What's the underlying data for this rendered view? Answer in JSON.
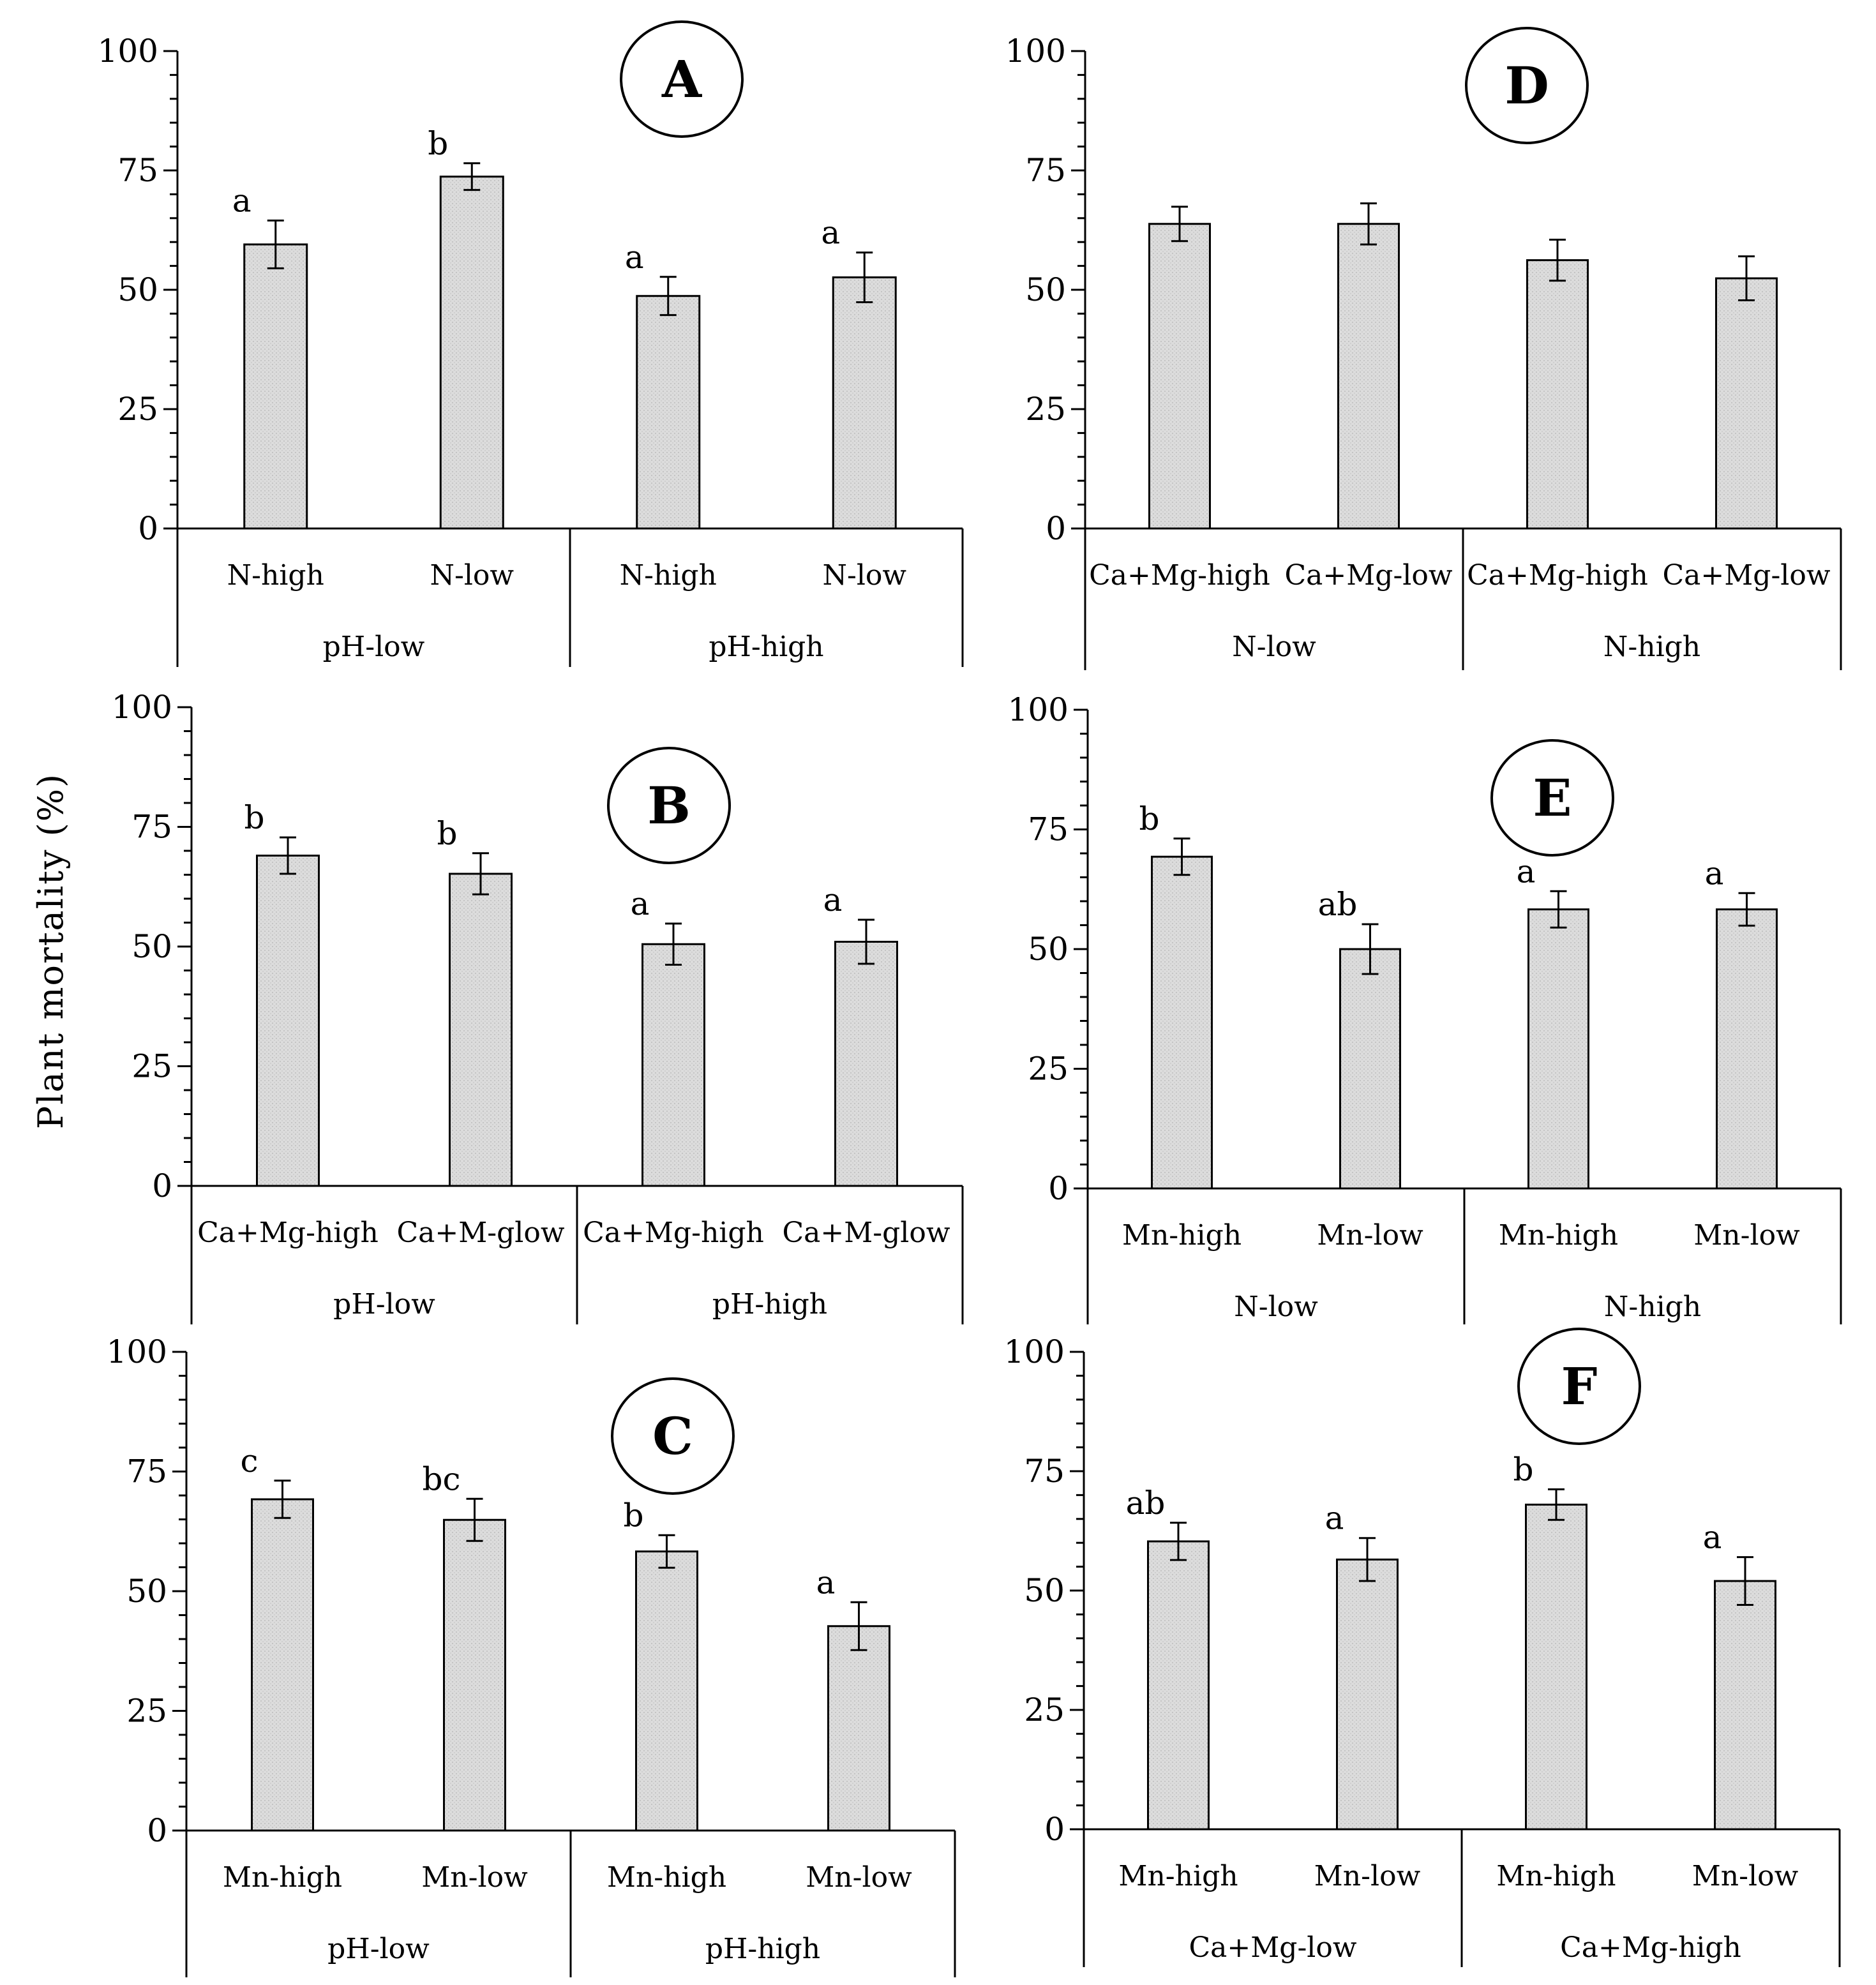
{
  "ylabel": "Plant mortality  (%)",
  "chart_data": [
    {
      "type": "bar",
      "panel": "A",
      "categories": [
        "N-high",
        "N-low",
        "N-high",
        "N-low"
      ],
      "groups": [
        "pH-low",
        "pH-high"
      ],
      "values": [
        59.5,
        73.7,
        48.7,
        52.6
      ],
      "errors": [
        5.0,
        2.8,
        4.0,
        5.2
      ],
      "letters": [
        "a",
        "b",
        "a",
        "a"
      ],
      "yticks": [
        "0",
        "25",
        "50",
        "75",
        "100"
      ],
      "ylim": [
        0,
        100
      ]
    },
    {
      "type": "bar",
      "panel": "B",
      "categories": [
        "Ca+Mg-high",
        "Ca+M-glow",
        "Ca+Mg-high",
        "Ca+M-glow"
      ],
      "groups": [
        "pH-low",
        "pH-high"
      ],
      "values": [
        69.0,
        65.2,
        50.5,
        51.0
      ],
      "errors": [
        3.8,
        4.3,
        4.3,
        4.6
      ],
      "letters": [
        "b",
        "b",
        "a",
        "a"
      ],
      "yticks": [
        "0",
        "25",
        "50",
        "75",
        "100"
      ],
      "ylim": [
        0,
        100
      ]
    },
    {
      "type": "bar",
      "panel": "C",
      "categories": [
        "Mn-high",
        "Mn-low",
        "Mn-high",
        "Mn-low"
      ],
      "groups": [
        "pH-low",
        "pH-high"
      ],
      "values": [
        69.2,
        64.9,
        58.3,
        42.7
      ],
      "errors": [
        3.9,
        4.4,
        3.4,
        5.0
      ],
      "letters": [
        "c",
        "bc",
        "b",
        "a"
      ],
      "yticks": [
        "0",
        "25",
        "50",
        "75",
        "100"
      ],
      "ylim": [
        0,
        100
      ]
    },
    {
      "type": "bar",
      "panel": "D",
      "categories": [
        "Ca+Mg-high",
        "Ca+Mg-low",
        "Ca+Mg-high",
        "Ca+Mg-low"
      ],
      "groups": [
        "N-low",
        "N-high"
      ],
      "values": [
        63.8,
        63.8,
        56.2,
        52.4
      ],
      "errors": [
        3.6,
        4.3,
        4.3,
        4.6
      ],
      "letters": [
        "",
        "",
        "",
        ""
      ],
      "yticks": [
        "0",
        "25",
        "50",
        "75",
        "100"
      ],
      "ylim": [
        0,
        100
      ]
    },
    {
      "type": "bar",
      "panel": "E",
      "categories": [
        "Mn-high",
        "Mn-low",
        "Mn-high",
        "Mn-low"
      ],
      "groups": [
        "N-low",
        "N-high"
      ],
      "values": [
        69.3,
        50.0,
        58.3,
        58.3
      ],
      "errors": [
        3.8,
        5.2,
        3.8,
        3.4
      ],
      "letters": [
        "b",
        "ab",
        "a",
        "a"
      ],
      "yticks": [
        "0",
        "25",
        "50",
        "75",
        "100"
      ],
      "ylim": [
        0,
        100
      ]
    },
    {
      "type": "bar",
      "panel": "F",
      "categories": [
        "Mn-high",
        "Mn-low",
        "Mn-high",
        "Mn-low"
      ],
      "groups": [
        "Ca+Mg-low",
        "Ca+Mg-high"
      ],
      "values": [
        60.3,
        56.5,
        68.0,
        52.0
      ],
      "errors": [
        3.9,
        4.5,
        3.2,
        5.0
      ],
      "letters": [
        "ab",
        "a",
        "b",
        "a"
      ],
      "yticks": [
        "0",
        "25",
        "50",
        "75",
        "100"
      ],
      "ylim": [
        0,
        100
      ]
    }
  ]
}
